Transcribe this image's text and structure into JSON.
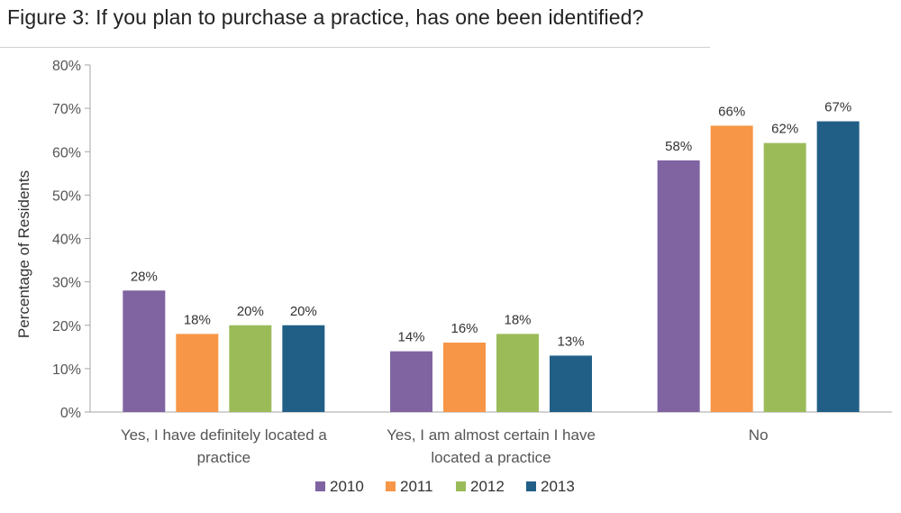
{
  "title": "Figure 3: If you plan to purchase a practice, has one been identified?",
  "chart_data": {
    "type": "bar",
    "title": "Figure 3: If you plan to purchase a practice, has one been identified?",
    "xlabel": "",
    "ylabel": "Percentage of Residents",
    "ylim": [
      0,
      80
    ],
    "y_ticks": [
      "0%",
      "10%",
      "20%",
      "30%",
      "40%",
      "50%",
      "60%",
      "70%",
      "80%"
    ],
    "y_tick_values": [
      0,
      10,
      20,
      30,
      40,
      50,
      60,
      70,
      80
    ],
    "categories": [
      [
        "Yes, I have definitely located a",
        "practice"
      ],
      [
        "Yes, I am almost certain I have",
        "located a practice"
      ],
      [
        "No"
      ]
    ],
    "series": [
      {
        "name": "2010",
        "color": "#8064a2",
        "values": [
          28,
          14,
          58
        ],
        "labels": [
          "28%",
          "14%",
          "58%"
        ]
      },
      {
        "name": "2011",
        "color": "#f79646",
        "values": [
          18,
          16,
          66
        ],
        "labels": [
          "18%",
          "16%",
          "66%"
        ]
      },
      {
        "name": "2012",
        "color": "#9bbb59",
        "values": [
          20,
          18,
          62
        ],
        "labels": [
          "20%",
          "18%",
          "62%"
        ]
      },
      {
        "name": "2013",
        "color": "#215f87",
        "values": [
          20,
          13,
          67
        ],
        "labels": [
          "20%",
          "13%",
          "67%"
        ]
      }
    ],
    "grid": false,
    "legend_position": "bottom"
  }
}
